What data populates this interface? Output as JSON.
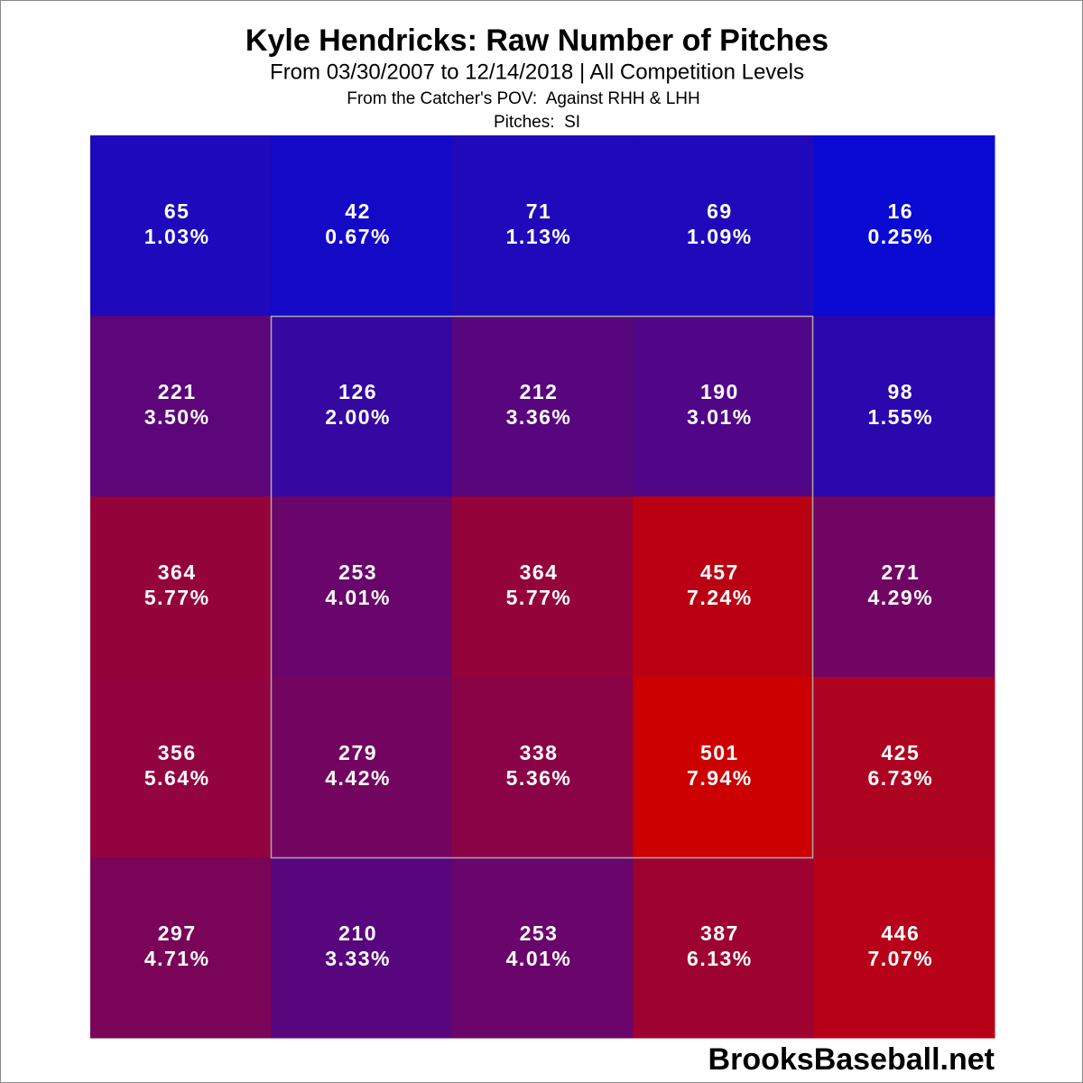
{
  "chart_data": {
    "type": "heatmap",
    "title": "Kyle Hendricks: Raw Number of Pitches",
    "subtitle": "From 03/30/2007 to 12/14/2018 | All Competition Levels",
    "note": "From the Catcher's POV:  Against RHH & LHH",
    "pitches": "Pitches:  SI",
    "source": "BrooksBaseball.net",
    "color_low": "#0a0ad2",
    "color_high": "#cc0000",
    "values": [
      [
        65,
        42,
        71,
        69,
        16
      ],
      [
        221,
        126,
        212,
        190,
        98
      ],
      [
        364,
        253,
        364,
        457,
        271
      ],
      [
        356,
        279,
        338,
        501,
        425
      ],
      [
        297,
        210,
        253,
        387,
        446
      ]
    ],
    "percent_values": [
      [
        1.03,
        0.67,
        1.13,
        1.09,
        0.25
      ],
      [
        3.5,
        2.0,
        3.36,
        3.01,
        1.55
      ],
      [
        5.77,
        4.01,
        5.77,
        7.24,
        4.29
      ],
      [
        5.64,
        4.42,
        5.36,
        7.94,
        6.73
      ],
      [
        4.71,
        3.33,
        4.01,
        6.13,
        7.07
      ]
    ],
    "percent_labels": [
      [
        "1.03%",
        "0.67%",
        "1.13%",
        "1.09%",
        "0.25%"
      ],
      [
        "3.50%",
        "2.00%",
        "3.36%",
        "3.01%",
        "1.55%"
      ],
      [
        "5.77%",
        "4.01%",
        "5.77%",
        "7.24%",
        "4.29%"
      ],
      [
        "5.64%",
        "4.42%",
        "5.36%",
        "7.94%",
        "6.73%"
      ],
      [
        "4.71%",
        "3.33%",
        "4.01%",
        "6.13%",
        "7.07%"
      ]
    ]
  }
}
